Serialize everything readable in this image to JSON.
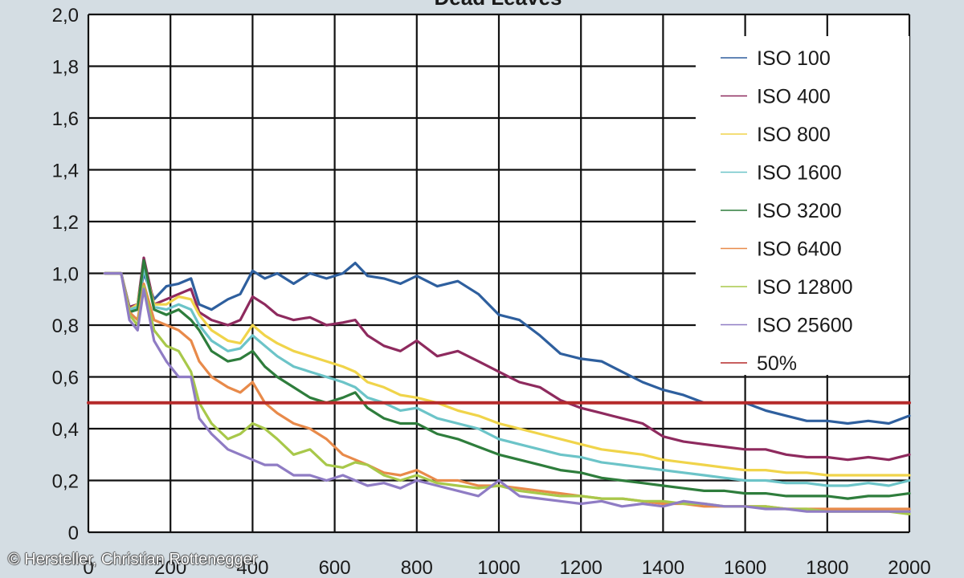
{
  "credit": "© Hersteller, Christian Rottenegger",
  "chart_data": {
    "type": "line",
    "title": "Dead Leaves",
    "xlabel": "",
    "ylabel": "",
    "xlim": [
      0,
      2000
    ],
    "ylim": [
      0,
      2.0
    ],
    "x_ticks": [
      0,
      200,
      400,
      600,
      800,
      1000,
      1200,
      1400,
      1600,
      1800,
      2000
    ],
    "x_tick_labels": [
      "0",
      "200",
      "400",
      "600",
      "800",
      "1000",
      "1200",
      "1400",
      "1600",
      "1800",
      "2000"
    ],
    "y_ticks": [
      0,
      0.2,
      0.4,
      0.6,
      0.8,
      1.0,
      1.2,
      1.4,
      1.6,
      1.8,
      2.0
    ],
    "y_tick_labels": [
      "0",
      "0,2",
      "0,4",
      "0,6",
      "0,8",
      "1,0",
      "1,2",
      "1,4",
      "1,6",
      "1,8",
      "2,0"
    ],
    "grid": true,
    "legend_position": "top-right",
    "series": [
      {
        "name": "ISO 100",
        "color": "#2e5f9e",
        "x": [
          40,
          80,
          100,
          120,
          135,
          160,
          190,
          220,
          250,
          270,
          300,
          340,
          370,
          400,
          430,
          460,
          500,
          540,
          580,
          620,
          650,
          680,
          720,
          760,
          800,
          850,
          900,
          950,
          1000,
          1050,
          1100,
          1150,
          1200,
          1250,
          1300,
          1350,
          1400,
          1450,
          1500,
          1550,
          1600,
          1650,
          1700,
          1750,
          1800,
          1850,
          1900,
          1950,
          2000
        ],
        "y": [
          1.0,
          1.0,
          0.85,
          0.88,
          1.0,
          0.9,
          0.95,
          0.96,
          0.98,
          0.88,
          0.86,
          0.9,
          0.92,
          1.01,
          0.98,
          1.0,
          0.96,
          1.0,
          0.98,
          1.0,
          1.04,
          0.99,
          0.98,
          0.96,
          0.99,
          0.95,
          0.97,
          0.92,
          0.84,
          0.82,
          0.76,
          0.69,
          0.67,
          0.66,
          0.62,
          0.58,
          0.55,
          0.53,
          0.5,
          0.5,
          0.5,
          0.47,
          0.45,
          0.43,
          0.43,
          0.42,
          0.43,
          0.42,
          0.45
        ]
      },
      {
        "name": "ISO 400",
        "color": "#8e2a5e",
        "x": [
          40,
          80,
          100,
          120,
          135,
          160,
          190,
          220,
          250,
          270,
          300,
          340,
          370,
          400,
          430,
          460,
          500,
          540,
          580,
          620,
          650,
          680,
          720,
          760,
          800,
          850,
          900,
          950,
          1000,
          1050,
          1100,
          1150,
          1200,
          1250,
          1300,
          1350,
          1400,
          1450,
          1500,
          1550,
          1600,
          1650,
          1700,
          1750,
          1800,
          1850,
          1900,
          1950,
          2000
        ],
        "y": [
          1.0,
          1.0,
          0.87,
          0.88,
          1.06,
          0.88,
          0.9,
          0.92,
          0.94,
          0.85,
          0.82,
          0.8,
          0.82,
          0.91,
          0.88,
          0.84,
          0.82,
          0.83,
          0.8,
          0.81,
          0.82,
          0.76,
          0.72,
          0.7,
          0.74,
          0.68,
          0.7,
          0.66,
          0.62,
          0.58,
          0.56,
          0.51,
          0.48,
          0.46,
          0.44,
          0.42,
          0.37,
          0.35,
          0.34,
          0.33,
          0.32,
          0.32,
          0.3,
          0.29,
          0.29,
          0.28,
          0.29,
          0.28,
          0.3
        ]
      },
      {
        "name": "ISO 800",
        "color": "#f0d44a",
        "x": [
          40,
          80,
          100,
          120,
          135,
          160,
          190,
          220,
          250,
          270,
          300,
          340,
          370,
          400,
          430,
          460,
          500,
          540,
          580,
          620,
          650,
          680,
          720,
          760,
          800,
          850,
          900,
          950,
          1000,
          1050,
          1100,
          1150,
          1200,
          1250,
          1300,
          1350,
          1400,
          1450,
          1500,
          1550,
          1600,
          1650,
          1700,
          1750,
          1800,
          1850,
          1900,
          1950,
          2000
        ],
        "y": [
          1.0,
          1.0,
          0.86,
          0.88,
          1.03,
          0.88,
          0.88,
          0.91,
          0.9,
          0.84,
          0.78,
          0.74,
          0.73,
          0.8,
          0.76,
          0.73,
          0.7,
          0.68,
          0.66,
          0.64,
          0.62,
          0.58,
          0.56,
          0.53,
          0.52,
          0.5,
          0.47,
          0.45,
          0.42,
          0.4,
          0.38,
          0.36,
          0.34,
          0.32,
          0.31,
          0.3,
          0.28,
          0.27,
          0.26,
          0.25,
          0.24,
          0.24,
          0.23,
          0.23,
          0.22,
          0.22,
          0.22,
          0.22,
          0.22
        ]
      },
      {
        "name": "ISO 1600",
        "color": "#6cc4c8",
        "x": [
          40,
          80,
          100,
          120,
          135,
          160,
          190,
          220,
          250,
          270,
          300,
          340,
          370,
          400,
          430,
          460,
          500,
          540,
          580,
          620,
          650,
          680,
          720,
          760,
          800,
          850,
          900,
          950,
          1000,
          1050,
          1100,
          1150,
          1200,
          1250,
          1300,
          1350,
          1400,
          1450,
          1500,
          1550,
          1600,
          1650,
          1700,
          1750,
          1800,
          1850,
          1900,
          1950,
          2000
        ],
        "y": [
          1.0,
          1.0,
          0.86,
          0.87,
          1.02,
          0.87,
          0.86,
          0.88,
          0.86,
          0.8,
          0.74,
          0.7,
          0.71,
          0.76,
          0.72,
          0.68,
          0.64,
          0.62,
          0.6,
          0.58,
          0.56,
          0.52,
          0.5,
          0.47,
          0.48,
          0.44,
          0.42,
          0.4,
          0.36,
          0.34,
          0.32,
          0.3,
          0.29,
          0.27,
          0.26,
          0.25,
          0.24,
          0.23,
          0.22,
          0.21,
          0.2,
          0.2,
          0.19,
          0.19,
          0.18,
          0.18,
          0.19,
          0.18,
          0.2
        ]
      },
      {
        "name": "ISO 3200",
        "color": "#2e7d3c",
        "x": [
          40,
          80,
          100,
          120,
          135,
          160,
          190,
          220,
          250,
          270,
          300,
          340,
          370,
          400,
          430,
          460,
          500,
          540,
          580,
          620,
          650,
          680,
          720,
          760,
          800,
          850,
          900,
          950,
          1000,
          1050,
          1100,
          1150,
          1200,
          1250,
          1300,
          1350,
          1400,
          1450,
          1500,
          1550,
          1600,
          1650,
          1700,
          1750,
          1800,
          1850,
          1900,
          1950,
          2000
        ],
        "y": [
          1.0,
          1.0,
          0.85,
          0.86,
          1.05,
          0.86,
          0.84,
          0.86,
          0.82,
          0.78,
          0.7,
          0.66,
          0.67,
          0.7,
          0.64,
          0.6,
          0.56,
          0.52,
          0.5,
          0.52,
          0.54,
          0.48,
          0.44,
          0.42,
          0.42,
          0.38,
          0.36,
          0.33,
          0.3,
          0.28,
          0.26,
          0.24,
          0.23,
          0.21,
          0.2,
          0.19,
          0.18,
          0.17,
          0.16,
          0.16,
          0.15,
          0.15,
          0.14,
          0.14,
          0.14,
          0.13,
          0.14,
          0.14,
          0.15
        ]
      },
      {
        "name": "ISO 6400",
        "color": "#e88a4a",
        "x": [
          40,
          80,
          100,
          120,
          135,
          160,
          190,
          220,
          250,
          270,
          300,
          340,
          370,
          400,
          430,
          460,
          500,
          540,
          580,
          620,
          650,
          680,
          720,
          760,
          800,
          850,
          900,
          950,
          1000,
          1050,
          1100,
          1150,
          1200,
          1250,
          1300,
          1350,
          1400,
          1450,
          1500,
          1550,
          1600,
          1650,
          1700,
          1750,
          1800,
          1850,
          1900,
          1950,
          2000
        ],
        "y": [
          1.0,
          1.0,
          0.85,
          0.82,
          0.96,
          0.82,
          0.8,
          0.78,
          0.74,
          0.66,
          0.6,
          0.56,
          0.54,
          0.58,
          0.5,
          0.46,
          0.42,
          0.4,
          0.36,
          0.3,
          0.28,
          0.26,
          0.23,
          0.22,
          0.24,
          0.2,
          0.2,
          0.18,
          0.18,
          0.17,
          0.16,
          0.15,
          0.14,
          0.13,
          0.13,
          0.12,
          0.11,
          0.11,
          0.1,
          0.1,
          0.1,
          0.1,
          0.09,
          0.09,
          0.09,
          0.09,
          0.09,
          0.09,
          0.09
        ]
      },
      {
        "name": "ISO 12800",
        "color": "#a8c84a",
        "x": [
          40,
          80,
          100,
          120,
          135,
          160,
          190,
          220,
          250,
          270,
          300,
          340,
          370,
          400,
          430,
          460,
          500,
          540,
          580,
          620,
          650,
          680,
          720,
          760,
          800,
          850,
          900,
          950,
          1000,
          1050,
          1100,
          1150,
          1200,
          1250,
          1300,
          1350,
          1400,
          1450,
          1500,
          1550,
          1600,
          1650,
          1700,
          1750,
          1800,
          1850,
          1900,
          1950,
          2000
        ],
        "y": [
          1.0,
          1.0,
          0.84,
          0.8,
          0.95,
          0.78,
          0.72,
          0.7,
          0.62,
          0.5,
          0.42,
          0.36,
          0.38,
          0.42,
          0.4,
          0.36,
          0.3,
          0.32,
          0.26,
          0.25,
          0.27,
          0.26,
          0.22,
          0.2,
          0.22,
          0.19,
          0.18,
          0.17,
          0.18,
          0.16,
          0.15,
          0.14,
          0.14,
          0.13,
          0.13,
          0.12,
          0.12,
          0.11,
          0.11,
          0.1,
          0.1,
          0.1,
          0.09,
          0.09,
          0.08,
          0.08,
          0.08,
          0.08,
          0.07
        ]
      },
      {
        "name": "ISO 25600",
        "color": "#8f7cc4",
        "x": [
          40,
          80,
          100,
          120,
          135,
          160,
          190,
          220,
          250,
          270,
          300,
          340,
          370,
          400,
          430,
          460,
          500,
          540,
          580,
          620,
          650,
          680,
          720,
          760,
          800,
          850,
          900,
          950,
          1000,
          1050,
          1100,
          1150,
          1200,
          1250,
          1300,
          1350,
          1400,
          1450,
          1500,
          1550,
          1600,
          1650,
          1700,
          1750,
          1800,
          1850,
          1900,
          1950,
          2000
        ],
        "y": [
          1.0,
          1.0,
          0.82,
          0.78,
          0.94,
          0.74,
          0.66,
          0.6,
          0.6,
          0.44,
          0.38,
          0.32,
          0.3,
          0.28,
          0.26,
          0.26,
          0.22,
          0.22,
          0.2,
          0.22,
          0.2,
          0.18,
          0.19,
          0.17,
          0.2,
          0.18,
          0.16,
          0.14,
          0.2,
          0.14,
          0.13,
          0.12,
          0.11,
          0.12,
          0.1,
          0.11,
          0.1,
          0.12,
          0.11,
          0.1,
          0.1,
          0.09,
          0.09,
          0.08,
          0.08,
          0.08,
          0.08,
          0.08,
          0.08
        ]
      },
      {
        "name": "50%",
        "color": "#b52a2a",
        "x": [
          0,
          2000
        ],
        "y": [
          0.5,
          0.5
        ]
      }
    ]
  }
}
